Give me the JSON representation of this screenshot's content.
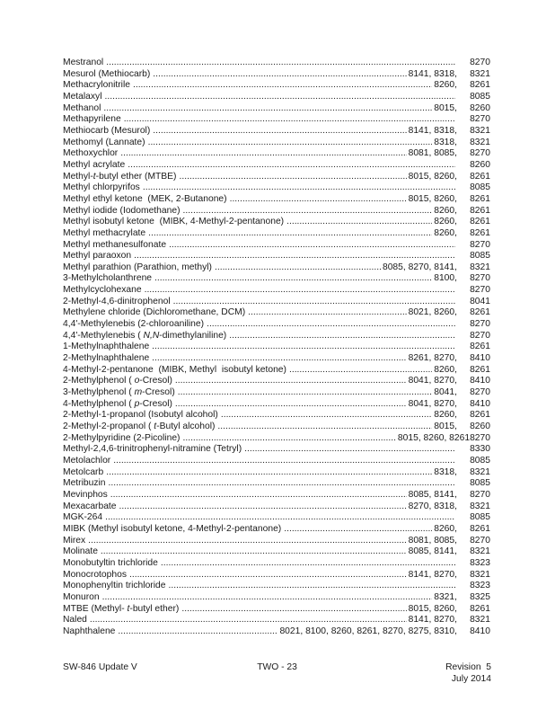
{
  "rows": [
    {
      "name": "Mestranol",
      "mid": "",
      "last": "8270"
    },
    {
      "name": "Mesurol (Methiocarb)",
      "mid": "8141, 8318,",
      "last": "8321"
    },
    {
      "name": "Methacrylonitrile",
      "mid": "8260,",
      "last": "8261"
    },
    {
      "name": "Metalaxyl",
      "mid": "",
      "last": "8085"
    },
    {
      "name": "Methanol",
      "mid": "8015,",
      "last": "8260"
    },
    {
      "name": "Methapyrilene",
      "mid": "",
      "last": "8270"
    },
    {
      "name": "Methiocarb (Mesurol)",
      "mid": "8141, 8318,",
      "last": "8321"
    },
    {
      "name": "Methomyl (Lannate)",
      "mid": "8318,",
      "last": "8321"
    },
    {
      "name": "Methoxychlor",
      "mid": "8081, 8085,",
      "last": "8270"
    },
    {
      "name": "Methyl acrylate",
      "mid": "",
      "last": "8260"
    },
    {
      "name": [
        {
          "t": "Methyl-"
        },
        {
          "t": "t",
          "i": true
        },
        {
          "t": "-butyl ether (MTBE)"
        }
      ],
      "mid": "8015, 8260,",
      "last": "8261"
    },
    {
      "name": "Methyl chlorpyrifos",
      "mid": "",
      "last": "8085"
    },
    {
      "name": "Methyl ethyl ketone  (MEK, 2-Butanone)",
      "mid": "8015, 8260,",
      "last": "8261"
    },
    {
      "name": "Methyl iodide (Iodomethane)",
      "mid": "8260,",
      "last": "8261"
    },
    {
      "name": "Methyl isobutyl ketone  (MIBK, 4-Methyl-2-pentanone)",
      "mid": "8260,",
      "last": "8261"
    },
    {
      "name": "Methyl methacrylate",
      "mid": "8260,",
      "last": "8261"
    },
    {
      "name": "Methyl methanesulfonate",
      "mid": "",
      "last": "8270"
    },
    {
      "name": "Methyl paraoxon",
      "mid": "",
      "last": "8085"
    },
    {
      "name": "Methyl parathion (Parathion, methyl)",
      "mid": "8085, 8270, 8141,",
      "last": "8321"
    },
    {
      "name": "3-Methylcholanthrene",
      "mid": "8100,",
      "last": "8270"
    },
    {
      "name": "Methylcyclohexane",
      "mid": "",
      "last": "8270"
    },
    {
      "name": "2-Methyl-4,6-dinitrophenol",
      "mid": "",
      "last": "8041"
    },
    {
      "name": "Methylene chloride (Dichloromethane, DCM)",
      "mid": "8021, 8260,",
      "last": "8261"
    },
    {
      "name": "4,4'-Methylenebis (2-chloroaniline)",
      "mid": "",
      "last": "8270"
    },
    {
      "name": [
        {
          "t": "4,4'-Methylenebis ( "
        },
        {
          "t": "N,N",
          "i": true
        },
        {
          "t": "-dimethylaniline)"
        }
      ],
      "mid": "",
      "last": "8270"
    },
    {
      "name": "1-Methylnaphthalene",
      "mid": "",
      "last": "8261"
    },
    {
      "name": "2-Methylnaphthalene",
      "mid": "8261, 8270,",
      "last": "8410"
    },
    {
      "name": "4-Methyl-2-pentanone  (MIBK, Methyl  isobutyl ketone)",
      "mid": "8260,",
      "last": "8261"
    },
    {
      "name": [
        {
          "t": "2-Methylphenol ( "
        },
        {
          "t": "o",
          "i": true
        },
        {
          "t": "-Cresol)"
        }
      ],
      "mid": "8041, 8270,",
      "last": "8410"
    },
    {
      "name": [
        {
          "t": "3-Methylphenol ( "
        },
        {
          "t": "m",
          "i": true
        },
        {
          "t": "-Cresol)"
        }
      ],
      "mid": "8041,",
      "last": "8270"
    },
    {
      "name": [
        {
          "t": "4-Methylphenol ( "
        },
        {
          "t": "p",
          "i": true
        },
        {
          "t": "-Cresol)"
        }
      ],
      "mid": "8041, 8270,",
      "last": "8410"
    },
    {
      "name": "2-Methyl-1-propanol (Isobutyl alcohol)",
      "mid": "8260,",
      "last": "8261"
    },
    {
      "name": [
        {
          "t": "2-Methyl-2-propanol ( "
        },
        {
          "t": "t",
          "i": true
        },
        {
          "t": "-Butyl alcohol)"
        }
      ],
      "mid": "8015,",
      "last": "8260"
    },
    {
      "name": "2-Methylpyridine (2-Picoline)",
      "mid": "8015, 8260, 8261",
      "last": "8270",
      "joined": true
    },
    {
      "name": "Methyl-2,4,6-trinitrophenyl-nitramine (Tetryl)",
      "mid": "",
      "last": "8330"
    },
    {
      "name": "Metolachlor",
      "mid": "",
      "last": "8085"
    },
    {
      "name": "Metolcarb",
      "mid": "8318,",
      "last": "8321"
    },
    {
      "name": "Metribuzin",
      "mid": "",
      "last": "8085"
    },
    {
      "name": "Mevinphos",
      "mid": "8085, 8141,",
      "last": "8270"
    },
    {
      "name": "Mexacarbate",
      "mid": "8270, 8318,",
      "last": "8321"
    },
    {
      "name": "MGK-264",
      "mid": "",
      "last": "8085"
    },
    {
      "name": "MIBK (Methyl isobutyl ketone, 4-Methyl-2-pentanone)",
      "mid": "8260,",
      "last": "8261"
    },
    {
      "name": "Mirex",
      "mid": "8081, 8085,",
      "last": "8270"
    },
    {
      "name": "Molinate",
      "mid": "8085, 8141,",
      "last": "8321"
    },
    {
      "name": "Monobutyltin trichloride",
      "mid": "",
      "last": "8323"
    },
    {
      "name": "Monocrotophos",
      "mid": "8141, 8270,",
      "last": "8321"
    },
    {
      "name": "Monophenyltin trichloride",
      "mid": "",
      "last": "8323"
    },
    {
      "name": "Monuron",
      "mid": "8321,",
      "last": "8325"
    },
    {
      "name": [
        {
          "t": "MTBE (Methyl- "
        },
        {
          "t": "t",
          "i": true
        },
        {
          "t": "-butyl ether)"
        }
      ],
      "mid": "8015, 8260,",
      "last": "8261"
    },
    {
      "name": "Naled",
      "mid": "8141, 8270,",
      "last": "8321"
    },
    {
      "name": "Naphthalene",
      "mid": "8021, 8100, 8260, 8261, 8270, 8275, 8310,",
      "last": "8410"
    }
  ],
  "footer": {
    "left": "SW-846 Update V",
    "center": "TWO - 23",
    "revision": "Revision  5",
    "date": "July 2014"
  },
  "colors": {
    "page_background": "#ffffff",
    "text": "#1a1a1a"
  }
}
